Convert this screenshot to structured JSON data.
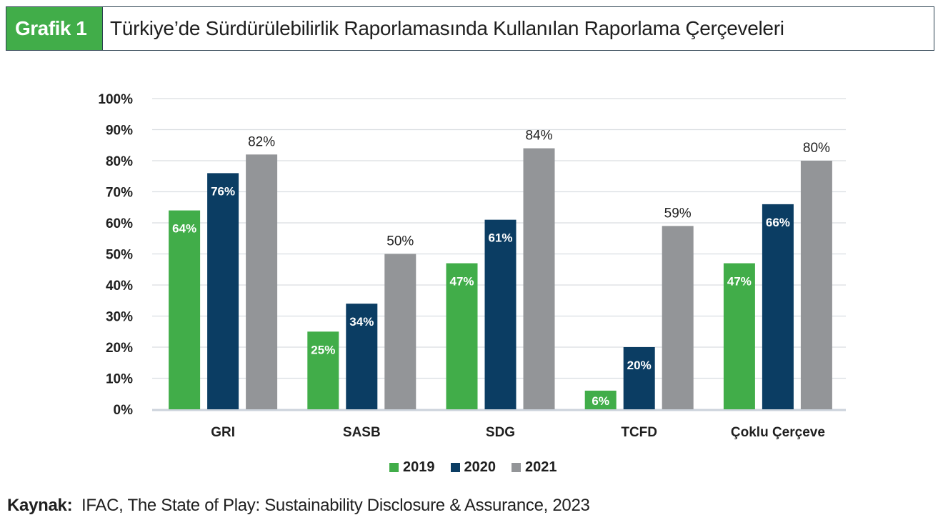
{
  "header": {
    "tag": "Grafik 1",
    "title": "Türkiye’de Sürdürülebilirlik Raporlamasında Kullanılan Raporlama Çerçeveleri",
    "tag_color": "#41ad49"
  },
  "source": {
    "label": "Kaynak:",
    "text": "IFAC, The State of Play: Sustainability Disclosure & Assurance,  2023"
  },
  "chart_data": {
    "type": "bar",
    "title": "Türkiye’de Sürdürülebilirlik Raporlamasında Kullanılan Raporlama Çerçeveleri",
    "xlabel": "",
    "ylabel": "",
    "categories": [
      "GRI",
      "SASB",
      "SDG",
      "TCFD",
      "Çoklu Çerçeve"
    ],
    "series": [
      {
        "name": "2019",
        "color": "#41ad49",
        "values": [
          64,
          25,
          47,
          6,
          47
        ],
        "label_position": "inside"
      },
      {
        "name": "2020",
        "color": "#0b3d63",
        "values": [
          76,
          34,
          61,
          20,
          66
        ],
        "label_position": "inside"
      },
      {
        "name": "2021",
        "color": "#939598",
        "values": [
          82,
          50,
          84,
          59,
          80
        ],
        "label_position": "outside"
      }
    ],
    "ylim": [
      0,
      100
    ],
    "yticks": [
      0,
      10,
      20,
      30,
      40,
      50,
      60,
      70,
      80,
      90,
      100
    ],
    "ytick_labels": [
      "0%",
      "10%",
      "20%",
      "30%",
      "40%",
      "50%",
      "60%",
      "70%",
      "80%",
      "90%",
      "100%"
    ],
    "value_suffix": "%",
    "grid": true,
    "legend_position": "bottom-center"
  }
}
